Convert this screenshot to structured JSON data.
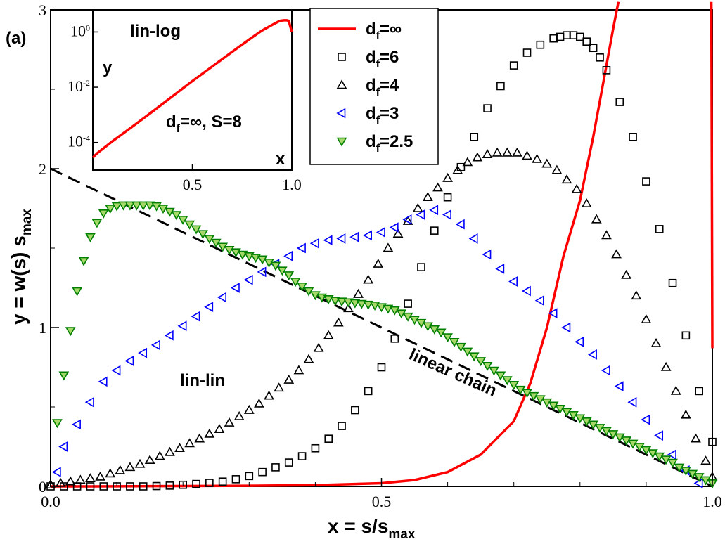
{
  "chart_data": {
    "type": "scatter",
    "panel_label": "(a)",
    "xlabel": "x = s/s",
    "xlabel_sub": "max",
    "ylabel": "y = w(s) s",
    "ylabel_sub": "max",
    "xlim": [
      0,
      1
    ],
    "ylim": [
      0,
      3
    ],
    "x_ticks": [
      0,
      0.5,
      1
    ],
    "x_tick_labels": [
      "0.0",
      "0.5",
      "1.0"
    ],
    "y_ticks": [
      0,
      1,
      2,
      3
    ],
    "y_tick_labels": [
      "0",
      "1",
      "2",
      "3"
    ],
    "annotations": {
      "lin_lin": "lin-lin",
      "linear_chain": "linear chain"
    },
    "legend": [
      {
        "key": "inf",
        "symbol": "line",
        "color": "#ff0000",
        "label": "d",
        "sub": "f",
        "suffix": "=∞"
      },
      {
        "key": "d6",
        "symbol": "square",
        "color": "#000000",
        "label": "d",
        "sub": "f",
        "suffix": "=6"
      },
      {
        "key": "d4",
        "symbol": "triangle-up",
        "color": "#000000",
        "label": "d",
        "sub": "f",
        "suffix": "=4"
      },
      {
        "key": "d3",
        "symbol": "triangle-left",
        "color": "#0000ff",
        "label": "d",
        "sub": "f",
        "suffix": "=3"
      },
      {
        "key": "d25",
        "symbol": "triangle-down",
        "color": "#008000",
        "label": "d",
        "sub": "f",
        "suffix": "=2.5"
      }
    ],
    "series": [
      {
        "name": "linear chain",
        "style": "dashed",
        "color": "#000000",
        "x": [
          0,
          1
        ],
        "y": [
          2,
          0
        ]
      },
      {
        "name": "df=inf",
        "style": "line",
        "color": "#ff0000",
        "x": [
          0,
          0.1,
          0.2,
          0.3,
          0.4,
          0.5,
          0.55,
          0.6,
          0.65,
          0.7,
          0.725,
          0.75,
          0.775,
          0.8,
          0.82,
          0.84,
          0.85,
          0.858
        ],
        "y": [
          0,
          0.0005,
          0.002,
          0.004,
          0.008,
          0.02,
          0.04,
          0.09,
          0.2,
          0.41,
          0.65,
          1.0,
          1.45,
          1.8,
          2.2,
          2.65,
          2.88,
          3.05
        ]
      },
      {
        "name": "df=inf tail",
        "style": "line",
        "color": "#ff0000",
        "x": [
          0.9985,
          1.0
        ],
        "y": [
          3.05,
          0.87
        ]
      },
      {
        "name": "df=6",
        "style": "square",
        "color": "#000000",
        "x": [
          0,
          0.02,
          0.04,
          0.06,
          0.08,
          0.1,
          0.12,
          0.14,
          0.16,
          0.18,
          0.2,
          0.22,
          0.24,
          0.26,
          0.28,
          0.3,
          0.32,
          0.34,
          0.36,
          0.38,
          0.4,
          0.42,
          0.44,
          0.46,
          0.48,
          0.5,
          0.52,
          0.54,
          0.56,
          0.58,
          0.6,
          0.62,
          0.64,
          0.66,
          0.68,
          0.7,
          0.72,
          0.74,
          0.76,
          0.77,
          0.78,
          0.79,
          0.8,
          0.81,
          0.82,
          0.83,
          0.84,
          0.86,
          0.88,
          0.9,
          0.92,
          0.94,
          0.96,
          0.98,
          1.0
        ],
        "y": [
          0.0,
          0.0,
          0.0,
          0.0,
          0.0,
          0.0,
          0.0,
          0.0,
          0.002,
          0.005,
          0.01,
          0.015,
          0.022,
          0.03,
          0.045,
          0.065,
          0.09,
          0.12,
          0.15,
          0.19,
          0.24,
          0.3,
          0.38,
          0.48,
          0.6,
          0.75,
          0.93,
          1.15,
          1.38,
          1.61,
          1.82,
          2.01,
          2.2,
          2.38,
          2.52,
          2.65,
          2.73,
          2.78,
          2.82,
          2.83,
          2.84,
          2.84,
          2.83,
          2.8,
          2.76,
          2.7,
          2.62,
          2.42,
          2.2,
          1.92,
          1.62,
          1.28,
          0.95,
          0.6,
          0.28
        ]
      },
      {
        "name": "df=4",
        "style": "triangle-up",
        "color": "#000000",
        "x": [
          0,
          0.015,
          0.03,
          0.045,
          0.06,
          0.075,
          0.09,
          0.105,
          0.12,
          0.135,
          0.15,
          0.165,
          0.18,
          0.195,
          0.21,
          0.225,
          0.24,
          0.255,
          0.27,
          0.285,
          0.3,
          0.315,
          0.33,
          0.345,
          0.36,
          0.375,
          0.39,
          0.405,
          0.42,
          0.435,
          0.45,
          0.465,
          0.48,
          0.495,
          0.51,
          0.525,
          0.54,
          0.555,
          0.57,
          0.585,
          0.6,
          0.615,
          0.63,
          0.645,
          0.66,
          0.675,
          0.69,
          0.705,
          0.72,
          0.735,
          0.75,
          0.765,
          0.78,
          0.795,
          0.81,
          0.825,
          0.84,
          0.855,
          0.87,
          0.885,
          0.9,
          0.915,
          0.93,
          0.945,
          0.96,
          0.975,
          0.99,
          1.0
        ],
        "y": [
          0.01,
          0.02,
          0.03,
          0.04,
          0.05,
          0.06,
          0.08,
          0.1,
          0.12,
          0.14,
          0.165,
          0.19,
          0.215,
          0.24,
          0.27,
          0.3,
          0.33,
          0.36,
          0.4,
          0.44,
          0.48,
          0.52,
          0.57,
          0.62,
          0.67,
          0.73,
          0.8,
          0.87,
          0.95,
          1.03,
          1.12,
          1.21,
          1.3,
          1.4,
          1.5,
          1.59,
          1.67,
          1.75,
          1.82,
          1.88,
          1.94,
          1.99,
          2.04,
          2.07,
          2.09,
          2.1,
          2.1,
          2.1,
          2.08,
          2.06,
          2.03,
          1.99,
          1.93,
          1.87,
          1.78,
          1.68,
          1.58,
          1.46,
          1.33,
          1.2,
          1.05,
          0.9,
          0.75,
          0.6,
          0.45,
          0.3,
          0.16,
          0.06
        ]
      },
      {
        "name": "df=3",
        "style": "triangle-left",
        "color": "#0000ff",
        "x": [
          0.01,
          0.02,
          0.04,
          0.06,
          0.08,
          0.1,
          0.12,
          0.14,
          0.16,
          0.18,
          0.2,
          0.22,
          0.24,
          0.26,
          0.28,
          0.3,
          0.32,
          0.34,
          0.36,
          0.38,
          0.4,
          0.42,
          0.44,
          0.46,
          0.48,
          0.5,
          0.52,
          0.54,
          0.56,
          0.58,
          0.6,
          0.62,
          0.64,
          0.66,
          0.68,
          0.7,
          0.72,
          0.74,
          0.76,
          0.78,
          0.8,
          0.82,
          0.84,
          0.86,
          0.88,
          0.9,
          0.92,
          0.94,
          0.96,
          0.98
        ],
        "y": [
          0.09,
          0.25,
          0.39,
          0.53,
          0.66,
          0.73,
          0.79,
          0.84,
          0.89,
          0.95,
          1.01,
          1.07,
          1.13,
          1.19,
          1.25,
          1.3,
          1.35,
          1.4,
          1.45,
          1.5,
          1.53,
          1.55,
          1.56,
          1.57,
          1.58,
          1.6,
          1.63,
          1.68,
          1.71,
          1.74,
          1.71,
          1.65,
          1.56,
          1.46,
          1.37,
          1.29,
          1.23,
          1.17,
          1.09,
          1.0,
          0.91,
          0.83,
          0.73,
          0.63,
          0.53,
          0.42,
          0.32,
          0.2,
          0.1,
          0.02
        ]
      },
      {
        "name": "df=2.5",
        "style": "triangle-down",
        "color": "#008000",
        "x": [
          0.01,
          0.02,
          0.03,
          0.04,
          0.05,
          0.06,
          0.07,
          0.08,
          0.09,
          0.1,
          0.11,
          0.12,
          0.13,
          0.14,
          0.15,
          0.16,
          0.17,
          0.18,
          0.19,
          0.2,
          0.21,
          0.22,
          0.23,
          0.24,
          0.25,
          0.26,
          0.27,
          0.28,
          0.29,
          0.3,
          0.31,
          0.32,
          0.33,
          0.34,
          0.35,
          0.36,
          0.37,
          0.38,
          0.39,
          0.4,
          0.41,
          0.42,
          0.43,
          0.44,
          0.45,
          0.46,
          0.47,
          0.48,
          0.49,
          0.5,
          0.51,
          0.52,
          0.53,
          0.54,
          0.55,
          0.56,
          0.57,
          0.58,
          0.59,
          0.6,
          0.61,
          0.62,
          0.63,
          0.64,
          0.65,
          0.66,
          0.67,
          0.68,
          0.69,
          0.7,
          0.71,
          0.72,
          0.73,
          0.74,
          0.75,
          0.76,
          0.77,
          0.78,
          0.79,
          0.8,
          0.81,
          0.82,
          0.83,
          0.84,
          0.85,
          0.86,
          0.87,
          0.88,
          0.89,
          0.9,
          0.91,
          0.92,
          0.93,
          0.94,
          0.95,
          0.96,
          0.97,
          0.98,
          0.99,
          1.0
        ],
        "y": [
          0.4,
          0.7,
          0.98,
          1.23,
          1.42,
          1.57,
          1.66,
          1.72,
          1.75,
          1.765,
          1.77,
          1.77,
          1.77,
          1.77,
          1.77,
          1.765,
          1.75,
          1.73,
          1.71,
          1.68,
          1.65,
          1.62,
          1.59,
          1.56,
          1.535,
          1.51,
          1.49,
          1.475,
          1.46,
          1.45,
          1.44,
          1.43,
          1.41,
          1.39,
          1.36,
          1.33,
          1.29,
          1.26,
          1.23,
          1.205,
          1.19,
          1.18,
          1.17,
          1.165,
          1.16,
          1.155,
          1.15,
          1.145,
          1.14,
          1.13,
          1.12,
          1.11,
          1.09,
          1.07,
          1.05,
          1.03,
          1.01,
          0.99,
          0.97,
          0.94,
          0.91,
          0.88,
          0.85,
          0.82,
          0.79,
          0.76,
          0.73,
          0.7,
          0.67,
          0.64,
          0.61,
          0.59,
          0.57,
          0.55,
          0.53,
          0.51,
          0.49,
          0.47,
          0.45,
          0.43,
          0.41,
          0.39,
          0.37,
          0.35,
          0.33,
          0.31,
          0.29,
          0.27,
          0.25,
          0.23,
          0.21,
          0.19,
          0.17,
          0.15,
          0.12,
          0.1,
          0.08,
          0.06,
          0.04,
          0.02
        ]
      }
    ],
    "inset": {
      "type": "line",
      "title": "lin-log",
      "ylabel": "y",
      "xlabel": "x",
      "annotation": "d",
      "annotation_sub": "f",
      "annotation_suffix": "=∞, S=8",
      "xlim": [
        0,
        1
      ],
      "ylog_range": [
        -5,
        0.8
      ],
      "x_ticks": [
        0.5,
        1.0
      ],
      "x_tick_labels": [
        "0.5",
        "1.0"
      ],
      "y_ticks": [
        -4,
        -2,
        0
      ],
      "y_tick_base": "10",
      "y_tick_exps": [
        "-4",
        "-2",
        "0"
      ],
      "color": "#ff0000",
      "x": [
        0,
        0.02,
        0.1,
        0.2,
        0.3,
        0.4,
        0.5,
        0.6,
        0.7,
        0.8,
        0.85,
        0.9,
        0.92,
        0.94,
        0.96,
        0.975,
        0.985,
        0.99,
        1.0
      ],
      "y_log10": [
        -4.55,
        -4.4,
        -3.95,
        -3.42,
        -2.88,
        -2.33,
        -1.78,
        -1.25,
        -0.72,
        -0.2,
        0.05,
        0.25,
        0.33,
        0.4,
        0.42,
        0.42,
        0.4,
        0.25,
        0.0
      ]
    }
  }
}
